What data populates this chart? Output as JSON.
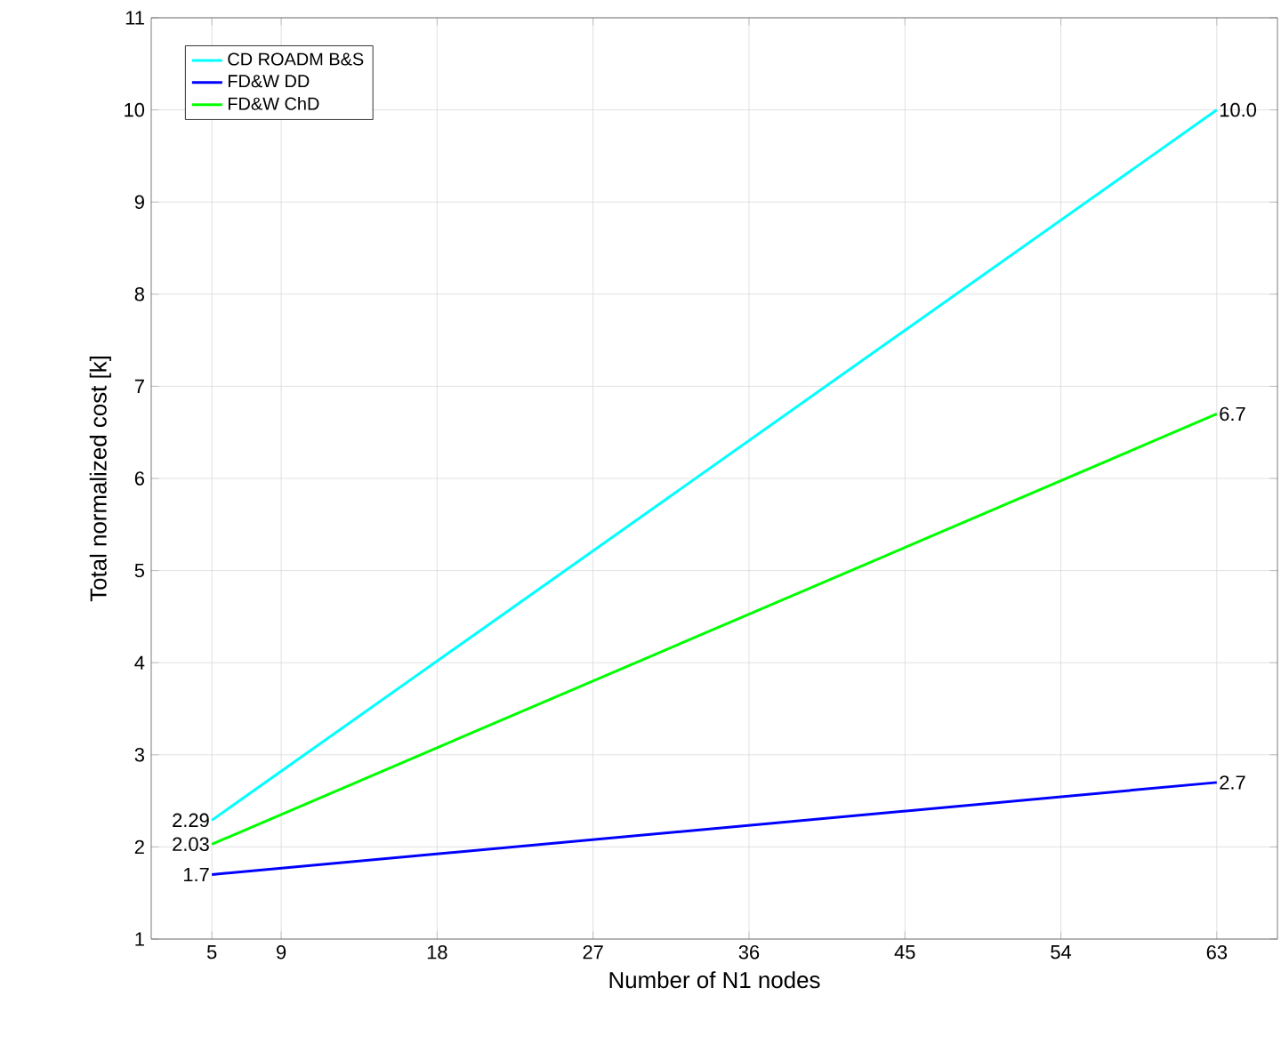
{
  "chart_data": {
    "type": "line",
    "xlabel": "Number of N1 nodes",
    "ylabel": "Total normalized cost [k]",
    "x": [
      5,
      63
    ],
    "series": [
      {
        "name": "CD ROADM B&S",
        "color": "#00ffff",
        "values": [
          2.29,
          10.0
        ],
        "value_labels": [
          "2.29",
          "10.0"
        ]
      },
      {
        "name": "FD&W DD",
        "color": "#0000ff",
        "values": [
          1.7,
          2.7
        ],
        "value_labels": [
          "1.7",
          "2.7"
        ]
      },
      {
        "name": "FD&W ChD",
        "color": "#00ff00",
        "values": [
          2.03,
          6.7
        ],
        "value_labels": [
          "2.03",
          "6.7"
        ]
      }
    ],
    "xlim": [
      1.5,
      66.5
    ],
    "xticks": [
      5,
      9,
      18,
      27,
      36,
      45,
      54,
      63
    ],
    "ylim": [
      1,
      11
    ],
    "yticks": [
      1,
      2,
      3,
      4,
      5,
      6,
      7,
      8,
      9,
      10,
      11
    ],
    "grid": true,
    "legend": "top left",
    "marker": "none",
    "line_style": "solid"
  }
}
